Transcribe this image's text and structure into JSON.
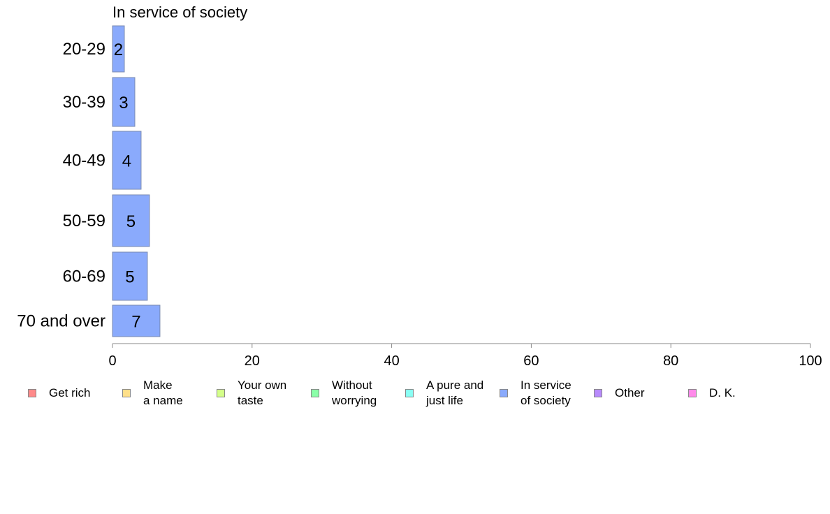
{
  "chart_data": {
    "type": "bar",
    "orientation": "horizontal",
    "title": "In service of society",
    "categories": [
      "20-29",
      "30-39",
      "40-49",
      "50-59",
      "60-69",
      "70 and over"
    ],
    "values": [
      2,
      3,
      4,
      5,
      5,
      7
    ],
    "true_values": [
      1.7,
      3.2,
      4.1,
      5.3,
      5.0,
      6.8
    ],
    "xlim": [
      0,
      100
    ],
    "xticks": [
      "0",
      "20",
      "40",
      "60",
      "80",
      "100"
    ],
    "bar_color": "#8aaafc",
    "bar_edge": "#7a8ab0",
    "grid": false,
    "legend_position": "bottom",
    "legend": [
      {
        "label": "Get rich",
        "color": "#ff8a8a"
      },
      {
        "label": "Make\na name",
        "color": "#ffe08a"
      },
      {
        "label": "Your own\ntaste",
        "color": "#d4ff8a"
      },
      {
        "label": "Without\nworrying",
        "color": "#8affa8"
      },
      {
        "label": "A pure and\njust life",
        "color": "#8afff4"
      },
      {
        "label": "In service\nof society",
        "color": "#8aaafc"
      },
      {
        "label": "Other",
        "color": "#b88afc"
      },
      {
        "label": "D. K.",
        "color": "#ff8aea"
      }
    ]
  }
}
